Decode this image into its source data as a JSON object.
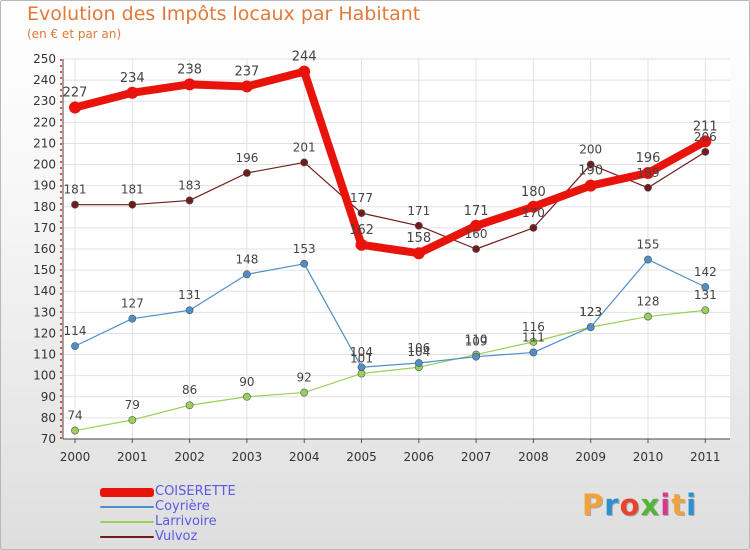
{
  "header": {
    "title": "Evolution des Impôts locaux par Habitant",
    "subtitle": "(en € et par an)"
  },
  "logo": {
    "text": "Proxiti",
    "letter_colors": [
      "#f0a33a",
      "#2c8fd0",
      "#e8432f",
      "#55b43a",
      "#d43a8a",
      "#f0a33a",
      "#2c8fd0"
    ]
  },
  "chart_data": {
    "type": "line",
    "title": "Evolution des Impôts locaux par Habitant",
    "subtitle": "(en € et par an)",
    "xlabel": "",
    "ylabel": "",
    "x": [
      "2000",
      "2001",
      "2002",
      "2003",
      "2004",
      "2005",
      "2006",
      "2007",
      "2008",
      "2009",
      "2010",
      "2011"
    ],
    "ylim": [
      70,
      250
    ],
    "yticks": [
      70,
      80,
      90,
      100,
      110,
      120,
      130,
      140,
      150,
      160,
      170,
      180,
      190,
      200,
      210,
      220,
      230,
      240,
      250
    ],
    "grid": true,
    "legend_position": "bottom-left",
    "series": [
      {
        "name": "COISERETTE",
        "color": "#e8140c",
        "values": [
          227,
          234,
          238,
          237,
          244,
          162,
          158,
          171,
          180,
          190,
          196,
          211
        ]
      },
      {
        "name": "Coyrière",
        "color": "#4f8fc8",
        "values": [
          114,
          127,
          131,
          148,
          153,
          104,
          106,
          109,
          111,
          123,
          155,
          142
        ]
      },
      {
        "name": "Larrivoire",
        "color": "#9ccf5a",
        "values": [
          74,
          79,
          86,
          90,
          92,
          101,
          104,
          110,
          116,
          123,
          128,
          131
        ]
      },
      {
        "name": "Vulvoz",
        "color": "#6e1c1c",
        "values": [
          181,
          181,
          183,
          196,
          201,
          177,
          171,
          160,
          170,
          200,
          189,
          206
        ]
      }
    ]
  }
}
